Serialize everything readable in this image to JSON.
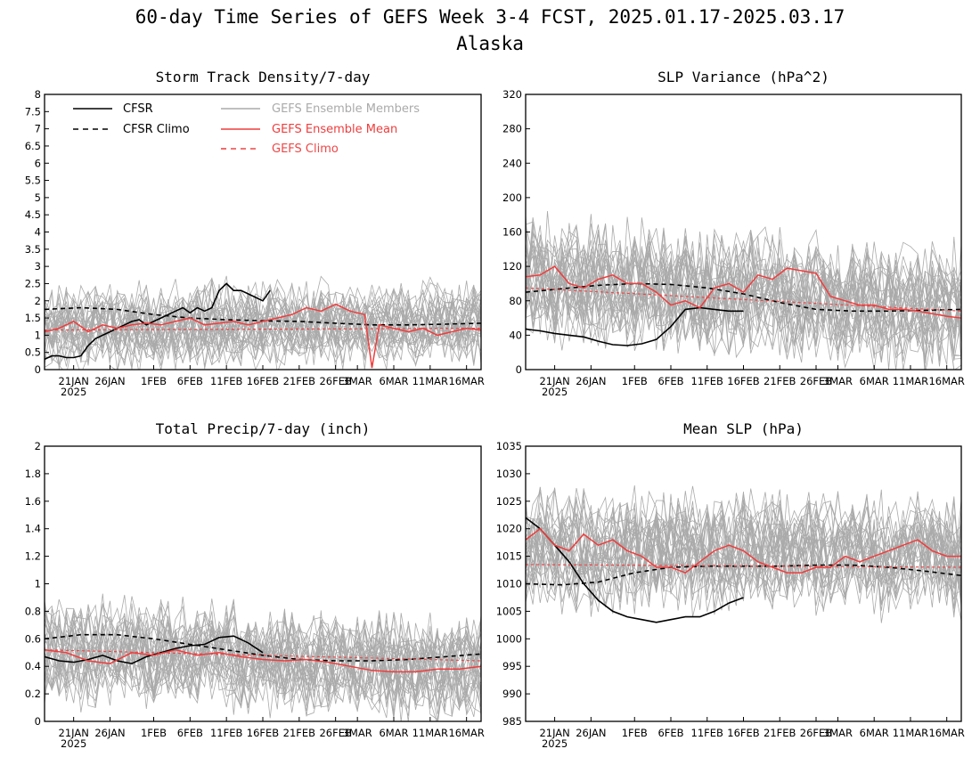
{
  "figure": {
    "title_line1": "60-day Time Series of GEFS Week 3-4 FCST, 2025.01.17-2025.03.17",
    "title_line2": "Alaska"
  },
  "legend": {
    "cfsr": "CFSR",
    "cfsr_climo": "CFSR Climo",
    "gefs_members": "GEFS Ensemble Members",
    "gefs_mean": "GEFS Ensemble Mean",
    "gefs_climo": "GEFS Climo"
  },
  "colors": {
    "cfsr": "#000000",
    "members": "#aaaaaa",
    "mean": "#f03c3c",
    "mean_climo": "#ef4646"
  },
  "x_axis": {
    "ticks": [
      {
        "day": 4,
        "label": "21JAN"
      },
      {
        "day": 9,
        "label": "26JAN"
      },
      {
        "day": 15,
        "label": "1FEB"
      },
      {
        "day": 20,
        "label": "6FEB"
      },
      {
        "day": 25,
        "label": "11FEB"
      },
      {
        "day": 30,
        "label": "16FEB"
      },
      {
        "day": 35,
        "label": "21FEB"
      },
      {
        "day": 40,
        "label": "26FEB"
      },
      {
        "day": 43,
        "label": "3MAR"
      },
      {
        "day": 48,
        "label": "6MAR"
      },
      {
        "day": 53,
        "label": "11MAR"
      },
      {
        "day": 58,
        "label": "16MAR"
      }
    ],
    "year_label": "2025"
  },
  "chart_data": [
    {
      "type": "line",
      "title": "Storm Track Density/7-day",
      "ylim": [
        0,
        8
      ],
      "yticks": [
        "0",
        "0.5",
        "1",
        "1.5",
        "2",
        "2.5",
        "3",
        "3.5",
        "4",
        "4.5",
        "5",
        "5.5",
        "6",
        "6.5",
        "7",
        "7.5",
        "8"
      ],
      "member_base": [
        1.2,
        1.4
      ],
      "member_amp": 0.9,
      "member_count": 30,
      "series": [
        {
          "name": "CFSR",
          "x": [
            0,
            1,
            2,
            3,
            4,
            5,
            6,
            7,
            8,
            9,
            10,
            11,
            12,
            13,
            14,
            15,
            16,
            17,
            18,
            19,
            20,
            21,
            22,
            23,
            24,
            25,
            26,
            27,
            28,
            29,
            30,
            31
          ],
          "values": [
            0.3,
            0.4,
            0.4,
            0.35,
            0.35,
            0.4,
            0.7,
            0.9,
            1.0,
            1.1,
            1.2,
            1.3,
            1.4,
            1.45,
            1.3,
            1.4,
            1.5,
            1.6,
            1.7,
            1.8,
            1.65,
            1.8,
            1.7,
            1.8,
            2.3,
            2.5,
            2.3,
            2.3,
            2.2,
            2.1,
            2.0,
            2.3
          ]
        },
        {
          "name": "CFSR Climo",
          "x": [
            0,
            5,
            10,
            15,
            20,
            25,
            30,
            35,
            40,
            45,
            50,
            55,
            60
          ],
          "values": [
            1.75,
            1.8,
            1.75,
            1.6,
            1.5,
            1.45,
            1.42,
            1.4,
            1.35,
            1.3,
            1.3,
            1.32,
            1.35
          ]
        },
        {
          "name": "GEFS Ensemble Mean",
          "x": [
            0,
            2,
            4,
            6,
            8,
            10,
            12,
            14,
            16,
            18,
            20,
            22,
            24,
            26,
            28,
            30,
            32,
            34,
            36,
            38,
            40,
            42,
            44,
            45,
            46,
            48,
            50,
            52,
            54,
            56,
            58,
            60
          ],
          "values": [
            1.1,
            1.2,
            1.4,
            1.1,
            1.3,
            1.2,
            1.3,
            1.35,
            1.3,
            1.4,
            1.5,
            1.3,
            1.35,
            1.4,
            1.3,
            1.4,
            1.5,
            1.6,
            1.8,
            1.7,
            1.9,
            1.7,
            1.6,
            0.05,
            1.3,
            1.2,
            1.1,
            1.2,
            1.0,
            1.1,
            1.2,
            1.15
          ]
        },
        {
          "name": "GEFS Climo",
          "x": [
            0,
            60
          ],
          "values": [
            1.15,
            1.2
          ]
        }
      ]
    },
    {
      "type": "line",
      "title": "SLP Variance (hPa^2)",
      "ylim": [
        0,
        320
      ],
      "yticks": [
        "0",
        "40",
        "80",
        "120",
        "160",
        "200",
        "240",
        "280",
        "320"
      ],
      "member_base": [
        105,
        70
      ],
      "member_amp": 55,
      "member_count": 30,
      "series": [
        {
          "name": "CFSR",
          "x": [
            0,
            2,
            4,
            6,
            8,
            10,
            12,
            14,
            16,
            18,
            20,
            22,
            24,
            26,
            28,
            30
          ],
          "values": [
            47,
            45,
            42,
            40,
            38,
            33,
            29,
            28,
            30,
            35,
            50,
            70,
            72,
            70,
            68,
            68
          ]
        },
        {
          "name": "CFSR Climo",
          "x": [
            0,
            5,
            10,
            15,
            20,
            25,
            30,
            35,
            40,
            45,
            50,
            55,
            60
          ],
          "values": [
            90,
            94,
            98,
            100,
            99,
            95,
            88,
            78,
            70,
            68,
            68,
            69,
            70
          ]
        },
        {
          "name": "GEFS Ensemble Mean",
          "x": [
            0,
            2,
            4,
            6,
            8,
            10,
            12,
            14,
            16,
            18,
            20,
            22,
            24,
            26,
            28,
            30,
            32,
            34,
            36,
            38,
            40,
            42,
            44,
            46,
            48,
            50,
            52,
            54,
            56,
            58,
            60
          ],
          "values": [
            108,
            110,
            120,
            100,
            95,
            105,
            110,
            100,
            100,
            90,
            75,
            80,
            72,
            95,
            100,
            90,
            110,
            105,
            118,
            115,
            112,
            85,
            80,
            75,
            75,
            70,
            70,
            68,
            65,
            62,
            60
          ]
        },
        {
          "name": "GEFS Climo",
          "x": [
            0,
            60
          ],
          "values": [
            95,
            68
          ]
        }
      ]
    },
    {
      "type": "line",
      "title": "Total Precip/7-day (inch)",
      "ylim": [
        0,
        2
      ],
      "yticks": [
        "0",
        "0.2",
        "0.4",
        "0.6",
        "0.8",
        "1",
        "1.2",
        "1.4",
        "1.6",
        "1.8",
        "2"
      ],
      "member_base": [
        0.52,
        0.38
      ],
      "member_amp": 0.28,
      "member_count": 30,
      "series": [
        {
          "name": "CFSR",
          "x": [
            0,
            2,
            4,
            6,
            8,
            10,
            12,
            14,
            16,
            18,
            20,
            22,
            24,
            26,
            28,
            30
          ],
          "values": [
            0.47,
            0.44,
            0.43,
            0.45,
            0.48,
            0.44,
            0.42,
            0.47,
            0.5,
            0.53,
            0.55,
            0.56,
            0.61,
            0.62,
            0.57,
            0.5
          ]
        },
        {
          "name": "CFSR Climo",
          "x": [
            0,
            5,
            10,
            15,
            20,
            25,
            30,
            35,
            40,
            45,
            50,
            55,
            60
          ],
          "values": [
            0.6,
            0.63,
            0.63,
            0.6,
            0.56,
            0.52,
            0.48,
            0.45,
            0.44,
            0.44,
            0.45,
            0.47,
            0.49
          ]
        },
        {
          "name": "GEFS Ensemble Mean",
          "x": [
            0,
            3,
            6,
            9,
            12,
            15,
            18,
            21,
            24,
            27,
            30,
            33,
            36,
            39,
            42,
            45,
            48,
            51,
            54,
            57,
            60
          ],
          "values": [
            0.52,
            0.5,
            0.44,
            0.42,
            0.5,
            0.48,
            0.52,
            0.48,
            0.5,
            0.47,
            0.45,
            0.44,
            0.45,
            0.43,
            0.4,
            0.37,
            0.36,
            0.36,
            0.38,
            0.38,
            0.4
          ]
        },
        {
          "name": "GEFS Climo",
          "x": [
            0,
            60
          ],
          "values": [
            0.52,
            0.44
          ]
        }
      ]
    },
    {
      "type": "line",
      "title": "Mean SLP (hPa)",
      "ylim": [
        985,
        1035
      ],
      "yticks": [
        "985",
        "990",
        "995",
        "1000",
        "1005",
        "1010",
        "1015",
        "1020",
        "1025",
        "1030",
        "1035"
      ],
      "member_base": [
        1016,
        1015
      ],
      "member_amp": 8,
      "member_count": 30,
      "series": [
        {
          "name": "CFSR",
          "x": [
            0,
            2,
            4,
            6,
            8,
            10,
            12,
            14,
            16,
            18,
            20,
            22,
            24,
            26,
            28,
            30
          ],
          "values": [
            1022,
            1020,
            1017,
            1014,
            1010,
            1007,
            1005,
            1004,
            1003.5,
            1003,
            1003.5,
            1004,
            1004,
            1005,
            1006.5,
            1007.5
          ]
        },
        {
          "name": "CFSR Climo",
          "x": [
            0,
            5,
            10,
            15,
            20,
            25,
            30,
            35,
            40,
            45,
            50,
            55,
            60
          ],
          "values": [
            1010,
            1009.8,
            1010.3,
            1012,
            1013,
            1013.2,
            1013.2,
            1013.2,
            1013.4,
            1013.4,
            1013,
            1012.3,
            1011.5
          ]
        },
        {
          "name": "GEFS Ensemble Mean",
          "x": [
            0,
            2,
            4,
            6,
            8,
            10,
            12,
            14,
            16,
            18,
            20,
            22,
            24,
            26,
            28,
            30,
            32,
            34,
            36,
            38,
            40,
            42,
            44,
            46,
            48,
            50,
            52,
            54,
            56,
            58,
            60
          ],
          "values": [
            1018,
            1020,
            1017,
            1016,
            1019,
            1017,
            1018,
            1016,
            1015,
            1013,
            1013,
            1012,
            1014,
            1016,
            1017,
            1016,
            1014,
            1013,
            1012,
            1012,
            1013,
            1013,
            1015,
            1014,
            1015,
            1016,
            1017,
            1018,
            1016,
            1015,
            1015
          ]
        },
        {
          "name": "GEFS Climo",
          "x": [
            0,
            60
          ],
          "values": [
            1013.5,
            1013
          ]
        }
      ]
    }
  ]
}
